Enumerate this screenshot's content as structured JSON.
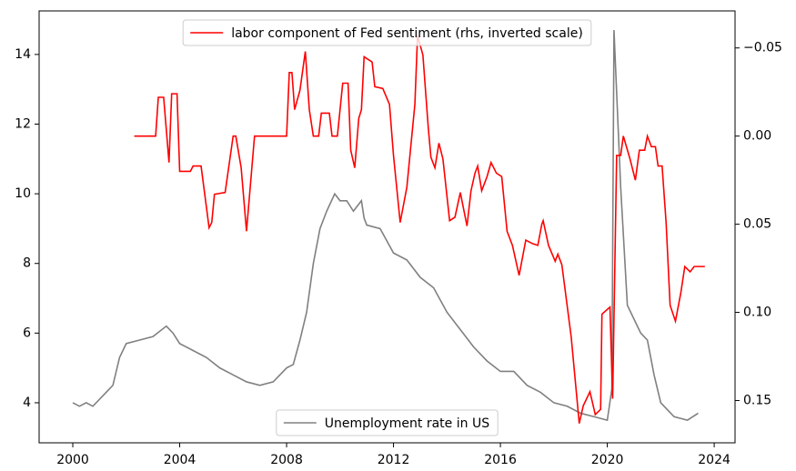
{
  "chart_data": {
    "type": "line",
    "xlim": [
      1998.74,
      2024.78
    ],
    "xticks": [
      2000,
      2004,
      2008,
      2012,
      2016,
      2020,
      2024
    ],
    "ylim": [
      2.85,
      15.25
    ],
    "yticks": [
      4,
      6,
      8,
      10,
      12,
      14
    ],
    "y2lim": [
      0.174,
      -0.071
    ],
    "y2ticks": [
      {
        "value": -0.05,
        "label": "−0.05"
      },
      {
        "value": 0,
        "label": "0.00"
      },
      {
        "value": 0.05,
        "label": "0.05"
      },
      {
        "value": 0.1,
        "label": "0.10"
      },
      {
        "value": 0.15,
        "label": "0.15"
      }
    ],
    "grid": false,
    "legend": "lower center",
    "legend2": "upper center",
    "series": [
      {
        "name": "Unemployment rate in US",
        "color": "#808080",
        "x": [
          2000,
          2000.25,
          2000.5,
          2000.75,
          2001,
          2001.25,
          2001.5,
          2001.75,
          2002,
          2002.5,
          2003,
          2003.5,
          2003.75,
          2004,
          2004.5,
          2005,
          2005.5,
          2006,
          2006.5,
          2007,
          2007.5,
          2008,
          2008.25,
          2008.5,
          2008.75,
          2009,
          2009.25,
          2009.5,
          2009.8,
          2010,
          2010.25,
          2010.5,
          2010.8,
          2010.9,
          2011,
          2011.5,
          2012,
          2012.5,
          2013,
          2013.5,
          2014,
          2014.5,
          2015,
          2015.5,
          2016,
          2016.5,
          2017,
          2017.5,
          2018,
          2018.5,
          2019,
          2019.5,
          2020,
          2020.17,
          2020.25,
          2020.5,
          2020.75,
          2021,
          2021.25,
          2021.5,
          2021.75,
          2022,
          2022.5,
          2023,
          2023.4
        ],
        "values": [
          4.0,
          3.9,
          4.0,
          3.9,
          4.1,
          4.3,
          4.5,
          5.3,
          5.7,
          5.8,
          5.9,
          6.2,
          6.0,
          5.7,
          5.5,
          5.3,
          5.0,
          4.8,
          4.6,
          4.5,
          4.6,
          5.0,
          5.1,
          5.8,
          6.6,
          8.0,
          9.0,
          9.5,
          10.0,
          9.8,
          9.8,
          9.5,
          9.8,
          9.3,
          9.1,
          9.0,
          8.3,
          8.1,
          7.6,
          7.3,
          6.6,
          6.1,
          5.6,
          5.2,
          4.9,
          4.9,
          4.5,
          4.3,
          4.0,
          3.9,
          3.7,
          3.6,
          3.5,
          4.4,
          14.7,
          10.2,
          6.8,
          6.4,
          6.0,
          5.8,
          4.8,
          4.0,
          3.6,
          3.5,
          3.7
        ]
      },
      {
        "name": "labor component of Fed sentiment (rhs, inverted scale)",
        "color": "#ff0000",
        "axis": "y2",
        "x": [
          2002.3,
          2003.1,
          2003.2,
          2003.4,
          2003.6,
          2003.7,
          2003.9,
          2004.0,
          2004.4,
          2004.5,
          2004.8,
          2005.1,
          2005.2,
          2005.3,
          2005.7,
          2006.0,
          2006.1,
          2006.3,
          2006.5,
          2006.8,
          2008.0,
          2008.1,
          2008.2,
          2008.3,
          2008.5,
          2008.7,
          2008.85,
          2009.0,
          2009.2,
          2009.3,
          2009.6,
          2009.7,
          2009.9,
          2010.1,
          2010.3,
          2010.4,
          2010.55,
          2010.7,
          2010.8,
          2010.9,
          2011.2,
          2011.3,
          2011.6,
          2011.85,
          2012.0,
          2012.25,
          2012.5,
          2012.8,
          2012.9,
          2013.1,
          2013.3,
          2013.4,
          2013.55,
          2013.7,
          2013.85,
          2014.1,
          2014.3,
          2014.5,
          2014.75,
          2014.9,
          2015.05,
          2015.15,
          2015.3,
          2015.5,
          2015.65,
          2015.85,
          2016.05,
          2016.25,
          2016.45,
          2016.7,
          2016.95,
          2017.2,
          2017.4,
          2017.55,
          2017.6,
          2017.8,
          2018.05,
          2018.15,
          2018.3,
          2018.65,
          2018.95,
          2019.1,
          2019.35,
          2019.55,
          2019.75,
          2019.8,
          2020.1,
          2020.2,
          2020.35,
          2020.5,
          2020.6,
          2020.85,
          2021.05,
          2021.2,
          2021.4,
          2021.5,
          2021.65,
          2021.8,
          2021.9,
          2022.05,
          2022.2,
          2022.35,
          2022.55,
          2022.75,
          2022.9,
          2023.1,
          2023.25,
          2023.4,
          2023.55,
          2023.65
        ],
        "values": [
          0.0,
          0.0,
          -0.022,
          -0.022,
          0.015,
          -0.024,
          -0.024,
          0.02,
          0.02,
          0.017,
          0.017,
          0.052,
          0.049,
          0.033,
          0.032,
          0.0,
          0.0,
          0.018,
          0.054,
          0.0,
          0.0,
          -0.036,
          -0.036,
          -0.015,
          -0.026,
          -0.048,
          -0.015,
          0.0,
          0.0,
          -0.013,
          -0.013,
          0.0,
          0.0,
          -0.03,
          -0.03,
          0.008,
          0.018,
          -0.01,
          -0.015,
          -0.045,
          -0.042,
          -0.028,
          -0.027,
          -0.018,
          0.011,
          0.049,
          0.029,
          -0.018,
          -0.057,
          -0.046,
          -0.005,
          0.012,
          0.018,
          0.004,
          0.013,
          0.048,
          0.046,
          0.032,
          0.051,
          0.031,
          0.021,
          0.017,
          0.031,
          0.023,
          0.015,
          0.021,
          0.023,
          0.054,
          0.062,
          0.079,
          0.059,
          0.061,
          0.062,
          0.05,
          0.048,
          0.062,
          0.071,
          0.067,
          0.073,
          0.114,
          0.163,
          0.153,
          0.145,
          0.158,
          0.155,
          0.101,
          0.097,
          0.149,
          0.011,
          0.011,
          0.0,
          0.013,
          0.025,
          0.008,
          0.008,
          0.0,
          0.006,
          0.006,
          0.017,
          0.017,
          0.049,
          0.096,
          0.105,
          0.089,
          0.074,
          0.077,
          0.074,
          0.074,
          0.074,
          0.074
        ]
      }
    ]
  }
}
